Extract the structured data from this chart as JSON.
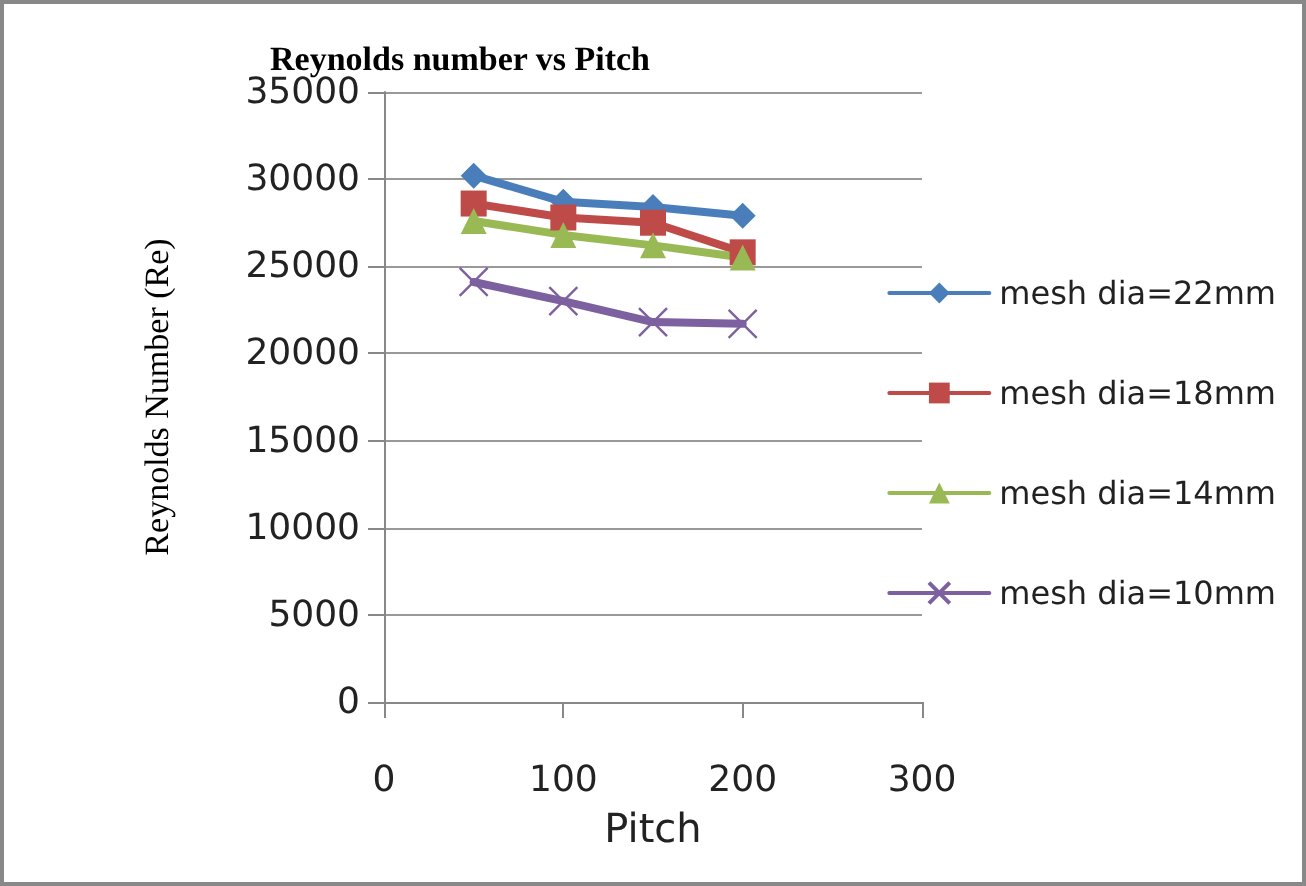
{
  "chart_data": {
    "type": "line",
    "title": "Reynolds number vs Pitch",
    "xlabel": "Pitch",
    "ylabel": "Reynolds Number (Re)",
    "x": [
      50,
      100,
      150,
      200
    ],
    "series": [
      {
        "name": "mesh dia=22mm",
        "color": "#4a7ebb",
        "marker": "diamond",
        "values": [
          30200,
          28700,
          28400,
          27900
        ]
      },
      {
        "name": "mesh dia=18mm",
        "color": "#be4b48",
        "marker": "square",
        "values": [
          28600,
          27800,
          27500,
          25800
        ]
      },
      {
        "name": "mesh dia=14mm",
        "color": "#98b954",
        "marker": "triangle",
        "values": [
          27600,
          26800,
          26200,
          25500
        ]
      },
      {
        "name": "mesh dia=10mm",
        "color": "#7d60a0",
        "marker": "cross",
        "values": [
          24100,
          23000,
          21800,
          21700
        ]
      }
    ],
    "xlim": [
      0,
      300
    ],
    "xticks": [
      0,
      100,
      200,
      300
    ],
    "ylim": [
      0,
      35000
    ],
    "yticks": [
      0,
      5000,
      10000,
      15000,
      20000,
      25000,
      30000,
      35000
    ],
    "grid": "y",
    "legend": "right",
    "line_style": "solid"
  }
}
